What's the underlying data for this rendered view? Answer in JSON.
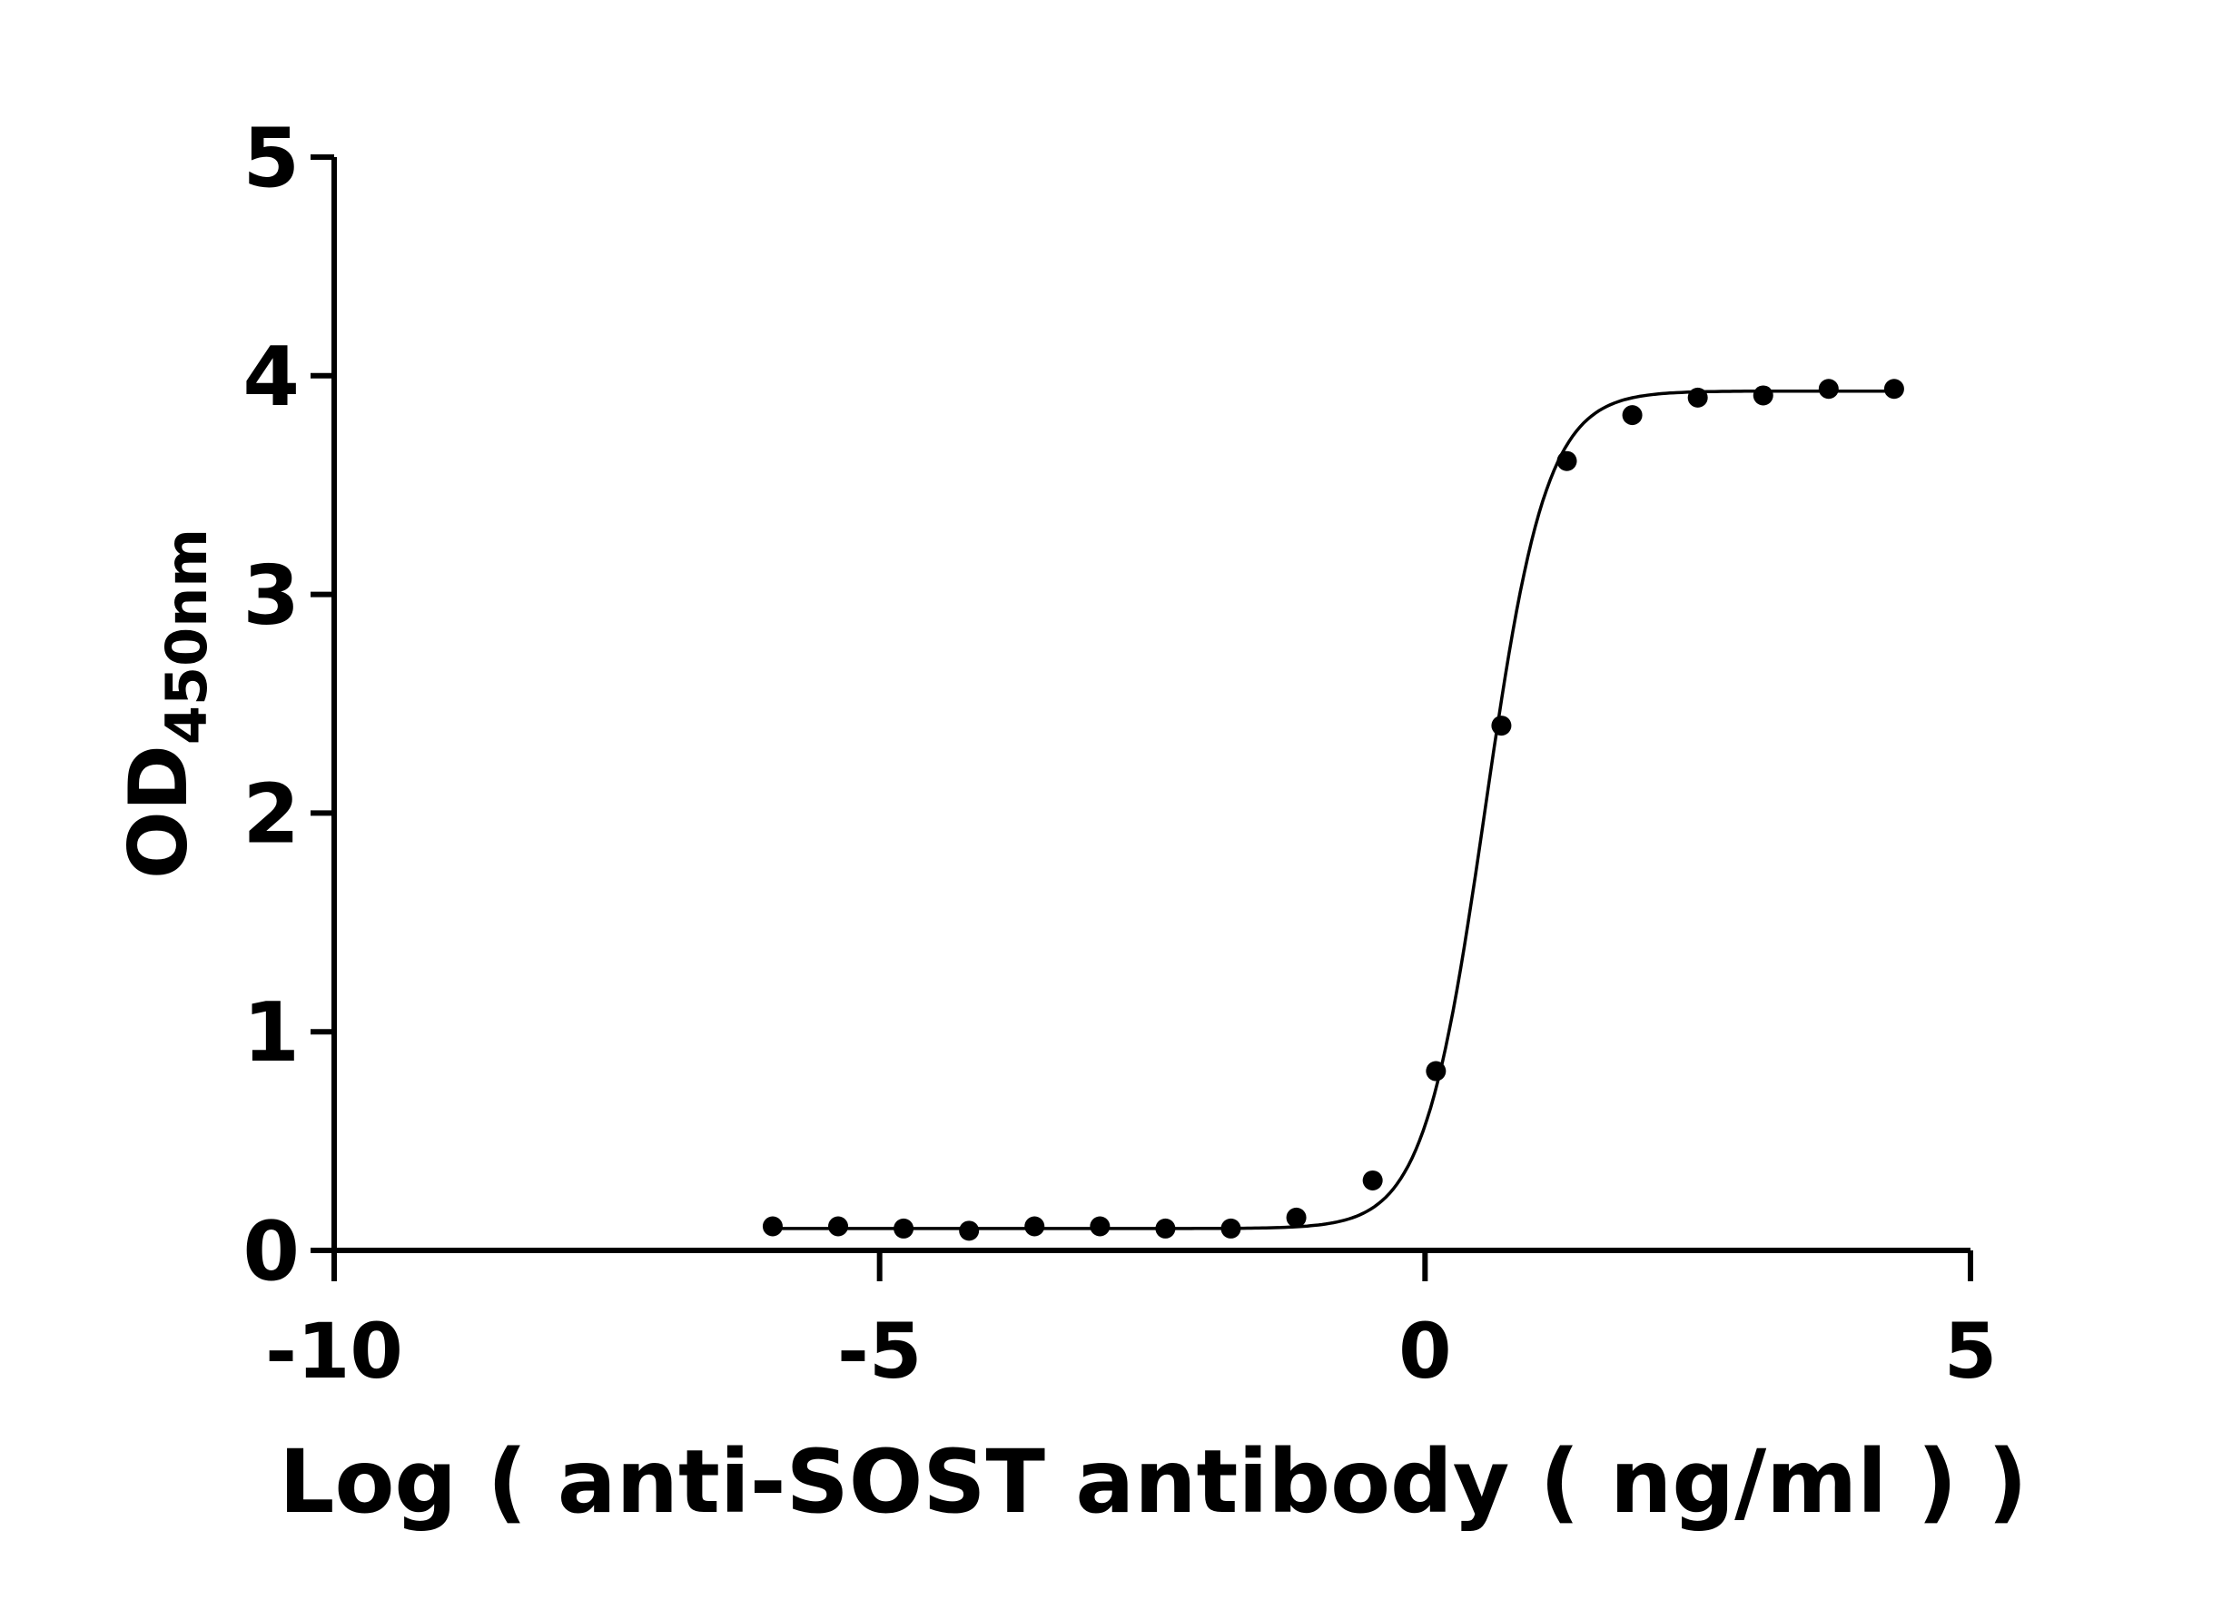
{
  "chart_data": {
    "type": "scatter",
    "xlabel": "Log ( anti-SOST antibody ( ng/ml )    )",
    "ylabel": "OD",
    "ylabel_sub": "450nm",
    "xlim": [
      -10,
      5
    ],
    "ylim": [
      0,
      5
    ],
    "xticks": [
      "-10",
      "-5",
      "0",
      "5"
    ],
    "yticks": [
      "0",
      "1",
      "2",
      "3",
      "4",
      "5"
    ],
    "grid": false,
    "series": [
      {
        "x": [
          -5.98,
          -5.38,
          -4.78,
          -4.18,
          -3.58,
          -2.98,
          -2.38,
          -1.78,
          -1.18,
          -0.48,
          0.1,
          0.7,
          1.3,
          1.9,
          2.5,
          3.1,
          3.7,
          4.3
        ],
        "y": [
          0.11,
          0.11,
          0.1,
          0.09,
          0.11,
          0.11,
          0.1,
          0.1,
          0.15,
          0.32,
          0.82,
          2.4,
          3.61,
          3.82,
          3.9,
          3.91,
          3.94,
          3.94
        ]
      }
    ],
    "fit": {
      "bottom": 0.1,
      "top": 3.93,
      "logEC50": 0.55,
      "hill": 1.55
    },
    "colors": {
      "line": "#000000",
      "point": "#000000"
    }
  }
}
